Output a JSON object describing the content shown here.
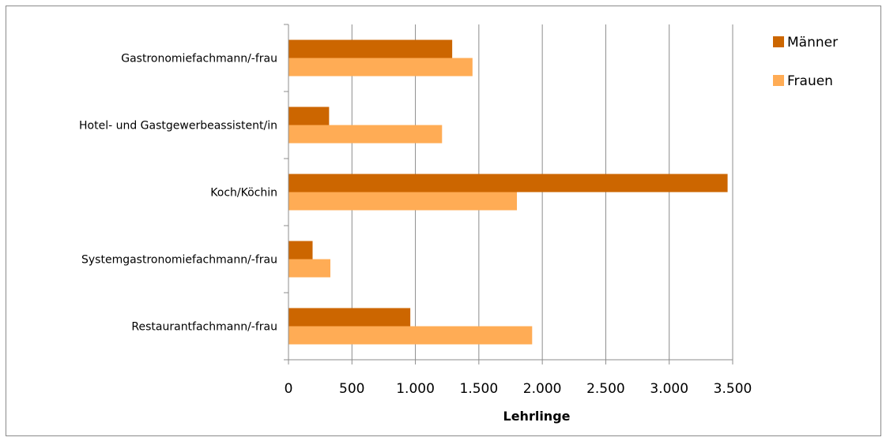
{
  "chart_data": {
    "type": "bar",
    "orientation": "horizontal",
    "categories": [
      "Gastronomiefachmann/-frau",
      "Hotel- und Gastgewerbeassistent/in",
      "Koch/Köchin",
      "Systemgastronomiefachmann/-frau",
      "Restaurantfachmann/-frau"
    ],
    "series": [
      {
        "name": "Männer",
        "color": "#cc6600",
        "values": [
          1290,
          320,
          3460,
          190,
          960
        ]
      },
      {
        "name": "Frauen",
        "color": "#ffac55",
        "values": [
          1450,
          1210,
          1800,
          330,
          1920
        ]
      }
    ],
    "xlabel": "Lehrlinge",
    "ylabel": "",
    "xlim": [
      0,
      3500
    ],
    "xticks": [
      0,
      500,
      1000,
      1500,
      2000,
      2500,
      3000,
      3500
    ],
    "xtick_labels": [
      "0",
      "500",
      "1.000",
      "1.500",
      "2.000",
      "2.500",
      "3.000",
      "3.500"
    ],
    "grid": "vertical",
    "legend_position": "right"
  }
}
